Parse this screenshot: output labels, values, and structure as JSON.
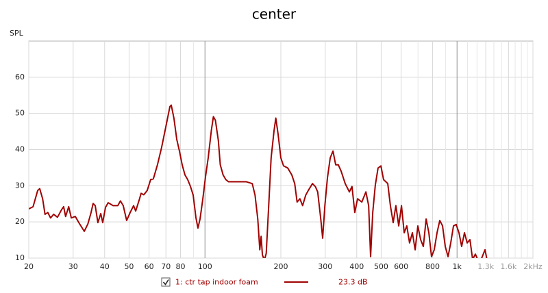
{
  "chart_data": {
    "type": "line",
    "title": "center",
    "y_label": "SPL",
    "log_x": true,
    "grid": true,
    "xlim": [
      20,
      2000
    ],
    "ylim": [
      10,
      70
    ],
    "xticks": [
      20,
      30,
      40,
      50,
      60,
      70,
      80,
      100,
      200,
      300,
      400,
      500,
      600,
      800,
      {
        "value": 1000,
        "label": "1k"
      },
      {
        "value": 1300,
        "label": "1.3k"
      },
      {
        "value": 1600,
        "label": "1.6k"
      },
      {
        "value": 2000,
        "label": "2kHz"
      }
    ],
    "x_minor_ticks": [
      90,
      700,
      900,
      1100,
      1200,
      1400,
      1500,
      1700,
      1800,
      1900
    ],
    "yticks": [
      10,
      20,
      30,
      40,
      50,
      60
    ],
    "x": [
      20,
      20.8,
      21.7,
      22.1,
      22.7,
      23.2,
      23.8,
      24.4,
      25.1,
      26,
      27,
      27.5,
      28,
      28.8,
      29.5,
      30.6,
      31.6,
      33.2,
      34.3,
      35.3,
      36,
      36.7,
      37.6,
      38.6,
      39.3,
      40.3,
      41.3,
      43.2,
      45.1,
      46.2,
      47.4,
      48.9,
      50.5,
      52.1,
      53.1,
      54.8,
      55.8,
      57.2,
      59,
      60.9,
      62.4,
      64.8,
      67.3,
      69.9,
      72.6,
      73.5,
      75.3,
      77.3,
      79.2,
      81.2,
      83.3,
      85.4,
      87.6,
      89.8,
      92.1,
      93.8,
      95.6,
      98,
      100.5,
      103,
      106,
      108,
      110,
      113,
      115,
      118,
      121,
      124,
      128,
      131,
      137,
      146,
      154,
      158,
      162,
      165,
      167,
      169,
      172,
      175,
      179,
      183,
      188,
      191,
      195,
      200,
      205,
      213,
      221,
      227,
      232,
      238,
      244,
      251,
      257,
      267,
      274,
      280,
      288,
      293,
      299,
      306,
      314,
      322,
      330,
      338,
      347,
      360,
      374,
      383,
      393,
      403,
      419,
      435,
      446,
      454,
      463,
      474,
      486,
      499,
      511,
      531,
      544,
      558,
      572,
      587,
      602,
      617,
      632,
      648,
      665,
      682,
      699,
      717,
      735,
      754,
      773,
      792,
      812,
      833,
      854,
      876,
      898,
      921,
      944,
      968,
      992,
      1018,
      1043,
      1070,
      1097,
      1125,
      1153,
      1182,
      1228,
      1291,
      1324
    ],
    "series": [
      {
        "name": "1: ctr tap indoor foam",
        "color": "#a00000",
        "values": [
          23.6,
          24.2,
          28.7,
          29.2,
          26.4,
          22.1,
          22.6,
          21.1,
          22.1,
          21.3,
          23.4,
          24.2,
          21.5,
          24.2,
          21.1,
          21.5,
          19.8,
          17.4,
          19.4,
          22.5,
          25.1,
          24.5,
          19.8,
          22.3,
          19.8,
          24.0,
          25.3,
          24.5,
          24.5,
          25.8,
          24.5,
          20.4,
          22.6,
          24.5,
          23.0,
          26.0,
          27.9,
          27.5,
          28.7,
          31.7,
          31.9,
          35.8,
          40.6,
          46.2,
          51.9,
          52.3,
          48.7,
          42.8,
          39.6,
          35.8,
          33.0,
          31.7,
          29.8,
          27.4,
          21.1,
          18.3,
          20.8,
          26.2,
          32.5,
          37.7,
          45.3,
          49.1,
          48.1,
          42.5,
          35.8,
          33.0,
          31.7,
          31.1,
          31.1,
          31.1,
          31.1,
          31.1,
          30.6,
          27.4,
          20.8,
          12.3,
          16.0,
          10.9,
          9.4,
          11.3,
          24.5,
          37.7,
          45.3,
          48.7,
          44.3,
          37.7,
          35.5,
          34.9,
          33.0,
          30.6,
          25.5,
          26.4,
          24.5,
          27.4,
          28.7,
          30.6,
          29.8,
          28.3,
          20.8,
          15.5,
          24.5,
          32.1,
          37.7,
          39.6,
          35.8,
          35.8,
          34.0,
          30.6,
          28.3,
          29.8,
          22.6,
          26.4,
          25.5,
          28.3,
          24.5,
          10.4,
          22.6,
          30.2,
          34.9,
          35.5,
          31.7,
          30.6,
          24.5,
          19.8,
          24.5,
          18.9,
          24.5,
          17.0,
          18.9,
          14.2,
          17.0,
          12.3,
          18.9,
          15.1,
          13.2,
          20.8,
          17.0,
          10.4,
          12.3,
          17.0,
          20.4,
          18.9,
          13.2,
          10.4,
          14.2,
          18.9,
          19.3,
          17.0,
          13.2,
          17.0,
          14.2,
          15.1,
          9.6,
          11.1,
          8.5,
          12.3,
          8.5
        ]
      }
    ],
    "legend_value": "23.3 dB"
  }
}
